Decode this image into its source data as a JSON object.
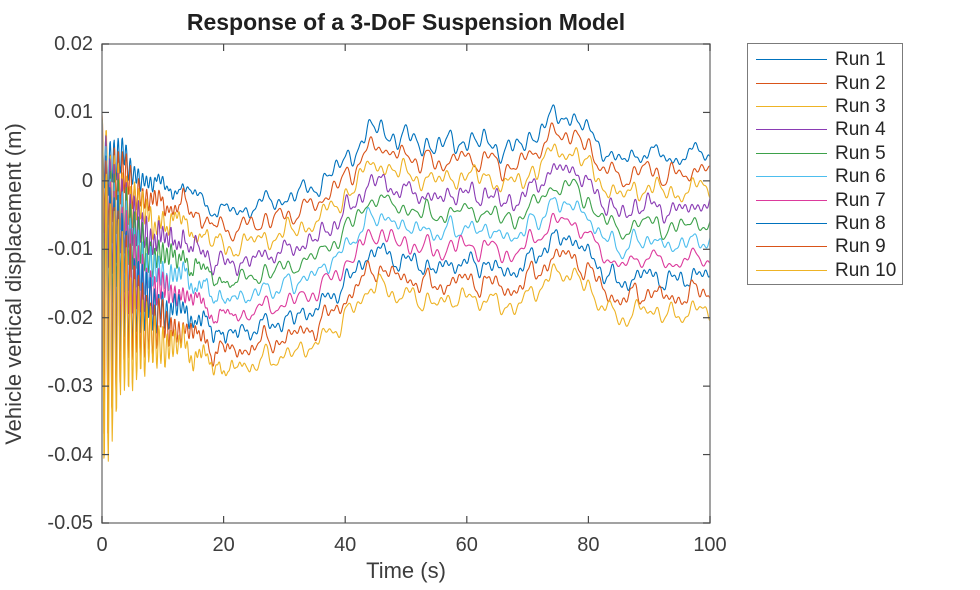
{
  "figure": {
    "title": "Response of a 3-DoF Suspension Model",
    "xlabel": "Time (s)",
    "ylabel": "Vehicle vertical displacement (m)"
  },
  "style": {
    "background": "#ffffff",
    "axis_box_color": "#7b7b7b",
    "tick_color": "#4a4a4a",
    "tick_label_color": "#3d3d3d",
    "title_color": "#1f1f1f",
    "legend_border_color": "#7b7b7b"
  },
  "chart_data": {
    "type": "line",
    "title": "Response of a 3-DoF Suspension Model",
    "xlabel": "Time (s)",
    "ylabel": "Vehicle vertical displacement (m)",
    "xlim": [
      0,
      100
    ],
    "ylim": [
      -0.05,
      0.02
    ],
    "xticks": [
      0,
      20,
      40,
      60,
      80,
      100
    ],
    "xtick_labels": [
      "0",
      "20",
      "40",
      "60",
      "80",
      "100"
    ],
    "yticks": [
      0.02,
      0.01,
      0,
      -0.01,
      -0.02,
      -0.03,
      -0.04,
      -0.05
    ],
    "ytick_labels": [
      "0.02",
      "0.01",
      "0",
      "-0.01",
      "-0.02",
      "-0.03",
      "-0.04",
      "-0.05"
    ],
    "grid": false,
    "legend": {
      "position": "outside-right",
      "entries": [
        "Run 1",
        "Run 2",
        "Run 3",
        "Run 4",
        "Run 5",
        "Run 6",
        "Run 7",
        "Run 8",
        "Run 9",
        "Run 10"
      ]
    },
    "series": [
      {
        "name": "Run 1",
        "color": "#0072BD",
        "offset": 0
      },
      {
        "name": "Run 2",
        "color": "#D95319",
        "offset": -0.00255
      },
      {
        "name": "Run 3",
        "color": "#EEB325",
        "offset": -0.0051
      },
      {
        "name": "Run 4",
        "color": "#8A3BB4",
        "offset": -0.00765
      },
      {
        "name": "Run 5",
        "color": "#3DA14A",
        "offset": -0.0102
      },
      {
        "name": "Run 6",
        "color": "#4DBEEE",
        "offset": -0.01275
      },
      {
        "name": "Run 7",
        "color": "#DC3A9C",
        "offset": -0.0153
      },
      {
        "name": "Run 8",
        "color": "#0072BD",
        "offset": -0.01785
      },
      {
        "name": "Run 9",
        "color": "#D95319",
        "offset": -0.0204
      },
      {
        "name": "Run 10",
        "color": "#EEB325",
        "offset": -0.02295
      }
    ],
    "base_signal_keypoints": {
      "t": [
        0,
        2,
        4,
        6,
        8,
        10,
        12,
        14,
        16,
        18,
        20,
        22,
        24,
        26,
        28,
        30,
        32,
        34,
        36,
        38,
        40,
        42,
        44,
        45.5,
        47,
        49,
        51,
        53,
        55,
        57,
        59,
        61,
        63,
        65,
        67,
        68.5,
        70,
        72,
        74,
        76,
        78,
        80,
        82,
        84,
        86,
        88,
        90,
        92,
        94,
        96,
        98,
        100
      ],
      "y": [
        0.004,
        0.0028,
        0.0026,
        0.0008,
        -0.0002,
        -0.001,
        -0.0008,
        -0.0015,
        -0.0025,
        -0.0038,
        -0.0044,
        -0.0045,
        -0.004,
        -0.0034,
        -0.003,
        -0.0026,
        -0.002,
        -0.0013,
        -0.0002,
        0.0012,
        0.003,
        0.005,
        0.007,
        0.008,
        0.0068,
        0.0063,
        0.006,
        0.0055,
        0.005,
        0.0055,
        0.006,
        0.0055,
        0.0058,
        0.005,
        0.0044,
        0.005,
        0.006,
        0.0075,
        0.009,
        0.0095,
        0.009,
        0.007,
        0.0052,
        0.0035,
        0.0028,
        0.004,
        0.0042,
        0.0035,
        0.0032,
        0.0038,
        0.004,
        0.0042
      ]
    },
    "transient": {
      "start_value": 0.0095,
      "base_start": 0.004,
      "amp_scale": 0.88,
      "decay_tau_s": 4.5,
      "freq_hz": 1.5
    },
    "noise": {
      "shared_components": [
        {
          "amp": 0.00045,
          "period": 1.9,
          "phase": 0.7
        },
        {
          "amp": 0.0005,
          "period": 3.37,
          "phase": 2.1
        }
      ],
      "per_run_components": [
        {
          "amp": 0.0007,
          "period": 5.2
        },
        {
          "amp": 0.00045,
          "period": 2.3
        },
        {
          "amp": 0.00035,
          "period": 1.25
        }
      ]
    }
  }
}
